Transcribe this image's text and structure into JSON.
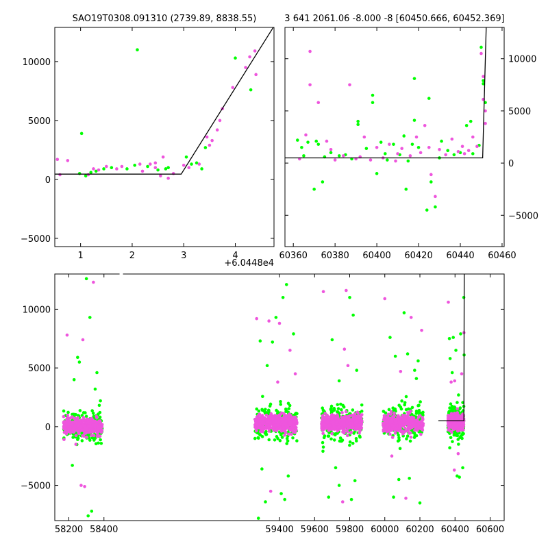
{
  "chart_data": [
    {
      "type": "scatter",
      "panel": "top-left",
      "title": "SAO19T0308.091310 (2739.89, 8838.55)",
      "offset_label": "+6.0448e4",
      "xlim": [
        0.5,
        4.75
      ],
      "ylim": [
        -5700,
        12900
      ],
      "xticks": [
        1,
        2,
        3,
        4
      ],
      "yticks": [
        -5000,
        0,
        5000,
        10000
      ],
      "yticks_side": "left",
      "colors": {
        "green": "#00ff00",
        "magenta": "#ee55dd",
        "model": "#000000"
      },
      "model_line": [
        [
          0.5,
          450
        ],
        [
          2.95,
          450
        ],
        [
          4.75,
          13000
        ]
      ],
      "series": [
        {
          "color": "green",
          "points": [
            [
              1.02,
              3900
            ],
            [
              2.1,
              11000
            ],
            [
              0.98,
              500
            ],
            [
              1.1,
              300
            ],
            [
              1.2,
              600
            ],
            [
              1.3,
              700
            ],
            [
              1.45,
              900
            ],
            [
              1.6,
              1000
            ],
            [
              1.9,
              900
            ],
            [
              2.05,
              1200
            ],
            [
              2.3,
              1100
            ],
            [
              2.5,
              800
            ],
            [
              2.65,
              900
            ],
            [
              3.05,
              1900
            ],
            [
              3.15,
              1300
            ],
            [
              3.25,
              1400
            ],
            [
              3.35,
              900
            ],
            [
              3.42,
              2700
            ],
            [
              4.3,
              7600
            ],
            [
              4.0,
              10300
            ],
            [
              2.7,
              1000
            ]
          ]
        },
        {
          "color": "magenta",
          "points": [
            [
              0.55,
              1700
            ],
            [
              0.6,
              400
            ],
            [
              0.75,
              1600
            ],
            [
              1.15,
              400
            ],
            [
              1.35,
              800
            ],
            [
              1.5,
              1100
            ],
            [
              1.7,
              900
            ],
            [
              1.8,
              1100
            ],
            [
              2.2,
              700
            ],
            [
              2.35,
              1300
            ],
            [
              2.45,
              1000
            ],
            [
              2.55,
              300
            ],
            [
              2.6,
              1900
            ],
            [
              2.8,
              500
            ],
            [
              3.0,
              1200
            ],
            [
              3.1,
              1000
            ],
            [
              3.3,
              1300
            ],
            [
              3.5,
              2900
            ],
            [
              3.55,
              3300
            ],
            [
              3.65,
              4200
            ],
            [
              3.7,
              5000
            ],
            [
              3.75,
              6000
            ],
            [
              3.95,
              7800
            ],
            [
              4.2,
              9500
            ],
            [
              4.28,
              10400
            ],
            [
              4.38,
              10900
            ],
            [
              4.4,
              8900
            ],
            [
              2.45,
              1400
            ],
            [
              2.7,
              100
            ],
            [
              2.15,
              1300
            ],
            [
              1.25,
              900
            ],
            [
              3.45,
              3600
            ]
          ]
        }
      ]
    },
    {
      "type": "scatter",
      "panel": "top-right",
      "title": "3 641 2061.06 -8.000 -8 [60450.666, 60452.369]",
      "xlim": [
        60356,
        60461
      ],
      "ylim": [
        -8000,
        13000
      ],
      "xticks": [
        60360,
        60380,
        60400,
        60420,
        60440,
        60460
      ],
      "yticks": [
        -5000,
        0,
        5000,
        10000
      ],
      "yticks_side": "right",
      "colors": {
        "green": "#00ff00",
        "magenta": "#ee55dd",
        "model": "#000000"
      },
      "model_line": [
        [
          60356,
          500
        ],
        [
          60450.7,
          500
        ],
        [
          60452.4,
          13000
        ]
      ],
      "series": [
        {
          "color": "green",
          "points": [
            [
              60362,
              2200
            ],
            [
              60364,
              1500
            ],
            [
              60367,
              2000
            ],
            [
              60370,
              -2500
            ],
            [
              60371,
              2100
            ],
            [
              60372,
              1800
            ],
            [
              60374,
              -1800
            ],
            [
              60378,
              1000
            ],
            [
              60382,
              700
            ],
            [
              60385,
              800
            ],
            [
              60391,
              4000
            ],
            [
              60391,
              3700
            ],
            [
              60395,
              1400
            ],
            [
              60398,
              5800
            ],
            [
              60398,
              6500
            ],
            [
              60400,
              -1000
            ],
            [
              60402,
              2000
            ],
            [
              60404,
              900
            ],
            [
              60408,
              1800
            ],
            [
              60411,
              800
            ],
            [
              60413,
              2600
            ],
            [
              60414,
              -2500
            ],
            [
              60417,
              1800
            ],
            [
              60418,
              8100
            ],
            [
              60418,
              4100
            ],
            [
              60420,
              1500
            ],
            [
              60424,
              -4500
            ],
            [
              60425,
              6200
            ],
            [
              60426,
              -1800
            ],
            [
              60428,
              -4200
            ],
            [
              60431,
              2100
            ],
            [
              60434,
              1200
            ],
            [
              60437,
              800
            ],
            [
              60440,
              1000
            ],
            [
              60443,
              3600
            ],
            [
              60445,
              4000
            ],
            [
              60449,
              1700
            ],
            [
              60450,
              11100
            ],
            [
              60451,
              7900
            ],
            [
              60451,
              7600
            ],
            [
              60452,
              5800
            ],
            [
              60365,
              700
            ],
            [
              60375,
              600
            ],
            [
              60388,
              400
            ],
            [
              60405,
              300
            ],
            [
              60415,
              200
            ],
            [
              60430,
              500
            ],
            [
              60446,
              900
            ]
          ]
        },
        {
          "color": "magenta",
          "points": [
            [
              60366,
              2700
            ],
            [
              60368,
              10700
            ],
            [
              60368,
              7500
            ],
            [
              60372,
              5800
            ],
            [
              60376,
              2100
            ],
            [
              60380,
              300
            ],
            [
              60384,
              700
            ],
            [
              60387,
              7500
            ],
            [
              60390,
              400
            ],
            [
              60394,
              2500
            ],
            [
              60397,
              300
            ],
            [
              60400,
              1500
            ],
            [
              60403,
              500
            ],
            [
              60406,
              1800
            ],
            [
              60409,
              200
            ],
            [
              60412,
              1400
            ],
            [
              60416,
              700
            ],
            [
              60419,
              2500
            ],
            [
              60421,
              1000
            ],
            [
              60423,
              3600
            ],
            [
              60426,
              -1100
            ],
            [
              60428,
              -3200
            ],
            [
              60430,
              1300
            ],
            [
              60433,
              800
            ],
            [
              60436,
              2300
            ],
            [
              60439,
              1100
            ],
            [
              60441,
              1600
            ],
            [
              60444,
              1200
            ],
            [
              60446,
              2500
            ],
            [
              60448,
              1600
            ],
            [
              60450,
              10500
            ],
            [
              60451,
              8300
            ],
            [
              60451,
              6100
            ],
            [
              60452,
              5000
            ],
            [
              60452,
              3800
            ],
            [
              60363,
              400
            ],
            [
              60378,
              1300
            ],
            [
              60392,
              600
            ],
            [
              60410,
              900
            ],
            [
              60425,
              1500
            ],
            [
              60442,
              900
            ]
          ]
        }
      ]
    },
    {
      "type": "scatter",
      "panel": "bottom",
      "xlim": [
        58120,
        60680
      ],
      "ylim": [
        -8000,
        13000
      ],
      "xticks": [
        58200,
        58400,
        59400,
        59600,
        59800,
        60000,
        60200,
        60400,
        60600
      ],
      "yticks": [
        -5000,
        0,
        5000,
        10000
      ],
      "yticks_side": "left",
      "axis_break": [
        58450,
        59260
      ],
      "colors": {
        "green": "#00ff00",
        "magenta": "#ee55dd",
        "model": "#000000"
      },
      "model_line": [
        [
          60305,
          500
        ],
        [
          60450.7,
          500
        ],
        [
          60452.4,
          13000
        ]
      ],
      "clusters": [
        {
          "x_range": [
            58170,
            58390
          ],
          "core_center": 0,
          "core_spread": 700,
          "outliers_x": [
            58190,
            58230,
            58260,
            58280,
            58300,
            58320,
            58340,
            58360,
            58220,
            58270,
            58310,
            58330,
            58290,
            58250,
            58350,
            58240,
            58380
          ],
          "outliers_y": [
            7800,
            4000,
            5500,
            7400,
            12600,
            9300,
            12300,
            4600,
            -3300,
            -5000,
            -7600,
            -7200,
            -5100,
            5900,
            3200,
            -1500,
            2200
          ]
        },
        {
          "x_range": [
            59260,
            59500
          ],
          "core_center": 300,
          "core_spread": 800,
          "outliers_x": [
            59270,
            59290,
            59320,
            59340,
            59360,
            59380,
            59400,
            59420,
            59440,
            59460,
            59480,
            59300,
            59350,
            59410,
            59430,
            59490,
            59280,
            59330,
            59390,
            59450
          ],
          "outliers_y": [
            9200,
            7300,
            -6400,
            9000,
            7200,
            9300,
            8800,
            11000,
            12100,
            6500,
            7900,
            -3600,
            -5500,
            -5700,
            -6200,
            4500,
            -7800,
            5200,
            3800,
            -4200
          ]
        },
        {
          "x_range": [
            59640,
            59870
          ],
          "core_center": 300,
          "core_spread": 800,
          "outliers_x": [
            59650,
            59700,
            59740,
            59780,
            59800,
            59820,
            59760,
            59810,
            59720,
            59790,
            59840,
            59680,
            59770,
            59830,
            59740
          ],
          "outliers_y": [
            11500,
            7400,
            -5000,
            11600,
            11000,
            9500,
            -6400,
            -6200,
            -3500,
            5200,
            4800,
            -6000,
            6600,
            -4600,
            3900
          ]
        },
        {
          "x_range": [
            59990,
            60220
          ],
          "core_center": 300,
          "core_spread": 800,
          "outliers_x": [
            60000,
            60030,
            60060,
            60090,
            60110,
            60130,
            60150,
            60170,
            60190,
            60210,
            60050,
            60080,
            60120,
            60200,
            60140,
            60040,
            60180
          ],
          "outliers_y": [
            10900,
            7600,
            6000,
            4700,
            9700,
            6200,
            9300,
            4800,
            5600,
            8200,
            -6000,
            -4500,
            -6100,
            -6500,
            -4400,
            -2500,
            4100
          ]
        },
        {
          "x_range": [
            60360,
            60450
          ],
          "core_center": 400,
          "core_spread": 700,
          "outliers_x": [
            60362,
            60368,
            60372,
            60378,
            60384,
            60390,
            60398,
            60405,
            60412,
            60418,
            60425,
            60432,
            60438,
            60444,
            60450,
            60451,
            60452,
            60370,
            60396,
            60420
          ],
          "outliers_y": [
            10600,
            7500,
            5800,
            3800,
            4600,
            7600,
            3900,
            6500,
            -4200,
            -2300,
            -4300,
            7900,
            4500,
            -3500,
            11000,
            8000,
            6100,
            -1800,
            -3700,
            2700
          ]
        }
      ]
    }
  ]
}
